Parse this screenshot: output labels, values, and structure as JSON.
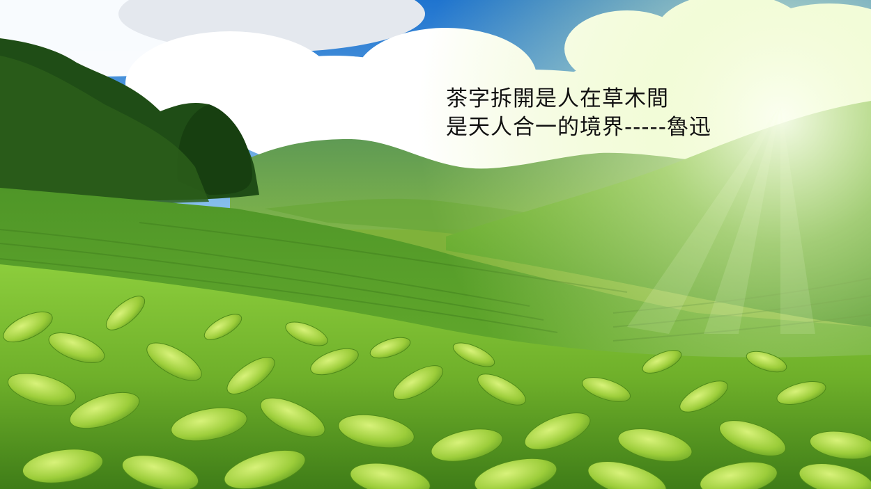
{
  "quote": {
    "line1": "茶字拆開是人在草木間",
    "line2": "是天人合一的境界-----魯迅"
  },
  "colors": {
    "sky": "#2f86d8",
    "cloud": "#ffffff",
    "forest": "#1e4a14",
    "hill": "#4f8f2a",
    "tea_leaf": "#8cc63a",
    "sunlight": "#f6ffd8"
  }
}
